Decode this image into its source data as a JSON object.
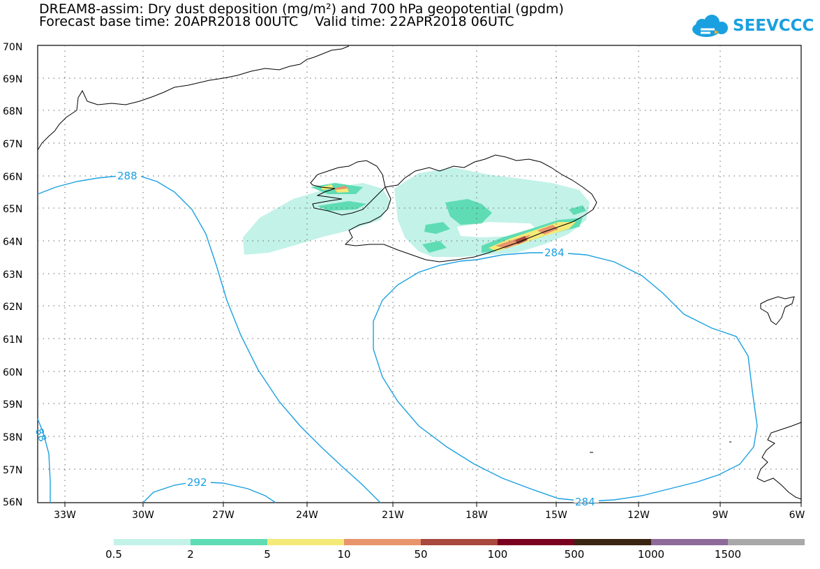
{
  "header": {
    "title_line1": "DREAM8-assim: Dry dust deposition (mg/m²) and 700 hPa geopotential (gpdm)",
    "title_line2": "Forecast base time: 20APR2018 00UTC    Valid time: 22APR2018 06UTC",
    "logo_text": "SEEVCCC"
  },
  "axes": {
    "lat_labels": [
      "70N",
      "69N",
      "68N",
      "67N",
      "66N",
      "65N",
      "64N",
      "63N",
      "62N",
      "61N",
      "60N",
      "59N",
      "58N",
      "57N",
      "56N"
    ],
    "lon_labels": [
      "33W",
      "30W",
      "27W",
      "24W",
      "21W",
      "18W",
      "15W",
      "12W",
      "9W",
      "6W"
    ]
  },
  "contours": {
    "labels": [
      "288",
      "284",
      "292",
      "284",
      "88"
    ]
  },
  "colorbar": {
    "labels": [
      "0.5",
      "2",
      "5",
      "10",
      "50",
      "100",
      "500",
      "1000",
      "1500"
    ],
    "colors": [
      "#c3f2e8",
      "#5fdcb4",
      "#f5ea78",
      "#e8946c",
      "#a8483e",
      "#7a0020",
      "#3a2412",
      "#8e6a9a",
      "#a8a8a8"
    ]
  },
  "colors": {
    "contour": "#1aa0e0",
    "coast": "#000000"
  }
}
